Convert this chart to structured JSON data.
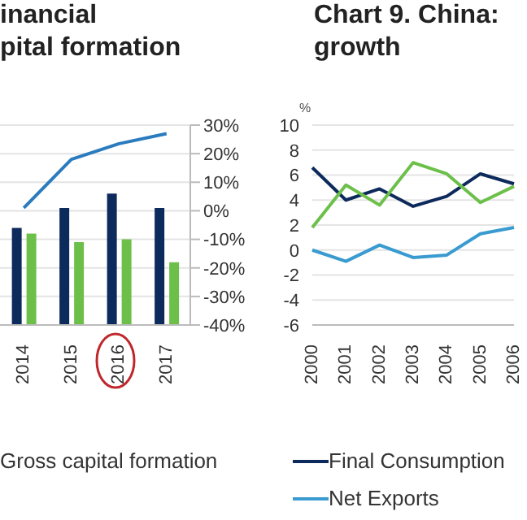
{
  "chart_data": [
    {
      "type": "bar",
      "title": "inancial\npital formation",
      "categories": [
        "2014",
        "2015",
        "2016",
        "2017"
      ],
      "series": [
        {
          "type": "bar",
          "color": "#0d2a5c",
          "axis": "y2",
          "base": [
            -40,
            -40,
            -40,
            -40
          ],
          "values": [
            34,
            41,
            46,
            41
          ]
        },
        {
          "type": "bar",
          "name": "Gross capital formation",
          "color": "#6cc04a",
          "axis": "y2",
          "base": [
            -40,
            -40,
            -40,
            -40
          ],
          "values": [
            32,
            29,
            30,
            22
          ]
        },
        {
          "type": "line",
          "color": "#2b7bbf",
          "axis": "y2",
          "values": [
            1,
            18,
            23.5,
            27
          ]
        }
      ],
      "y2lim": [
        -40,
        30
      ],
      "y2ticks": [
        {
          "value": -40,
          "label": "-40%"
        },
        {
          "value": -30,
          "label": "-30%"
        },
        {
          "value": -20,
          "label": "-20%"
        },
        {
          "value": -10,
          "label": "-10%"
        },
        {
          "value": 0,
          "label": "0%"
        },
        {
          "value": 10,
          "label": "10%"
        },
        {
          "value": 20,
          "label": "20%"
        },
        {
          "value": 30,
          "label": "30%"
        }
      ],
      "grid": "y",
      "legend": "bottom"
    },
    {
      "type": "line",
      "title": "Chart 9. China: \ngrowth",
      "ylabel": "%",
      "categories": [
        "2000",
        "2001",
        "2002",
        "2003",
        "2004",
        "2005",
        "2006"
      ],
      "series": [
        {
          "name": "Final Consumption",
          "color": "#0d2a5c",
          "values": [
            6.6,
            4.0,
            4.9,
            3.5,
            4.3,
            6.1,
            5.3
          ]
        },
        {
          "color": "#6cc04a",
          "values": [
            1.8,
            5.2,
            3.6,
            7.0,
            6.1,
            3.8,
            5.1
          ]
        },
        {
          "name": "Net Exports",
          "color": "#3a9bd0",
          "values": [
            0,
            -0.9,
            0.4,
            -0.6,
            -0.4,
            1.3,
            1.8
          ]
        }
      ],
      "ylim": [
        -6,
        10
      ],
      "yticks": [
        -6,
        -4,
        -2,
        0,
        2,
        4,
        6,
        8,
        10
      ],
      "grid": "y",
      "legend": "bottom"
    }
  ]
}
